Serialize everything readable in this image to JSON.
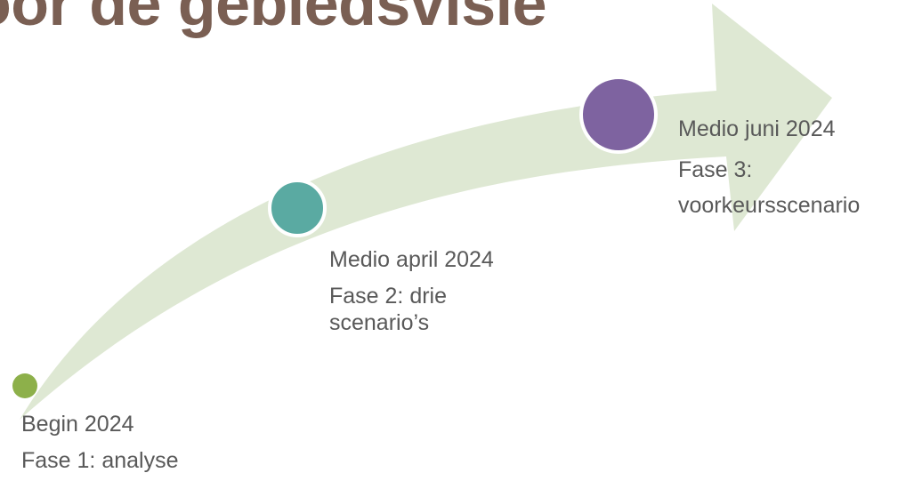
{
  "slide": {
    "title": "oor de gebiedsvisie"
  },
  "colors": {
    "title": "#7a5f53",
    "arrow": "#dee8d3",
    "phase1": "#8db04a",
    "phase2": "#5aaaa2",
    "phase3": "#7e63a0",
    "text": "#595959"
  },
  "milestones": [
    {
      "date": "Begin 2024",
      "phase": "Fase 1: analyse"
    },
    {
      "date": "Medio april 2024",
      "phase": "Fase 2: drie scenario’s"
    },
    {
      "date": "Medio juni 2024",
      "phase": "Fase 3: voorkeursscenario"
    }
  ]
}
